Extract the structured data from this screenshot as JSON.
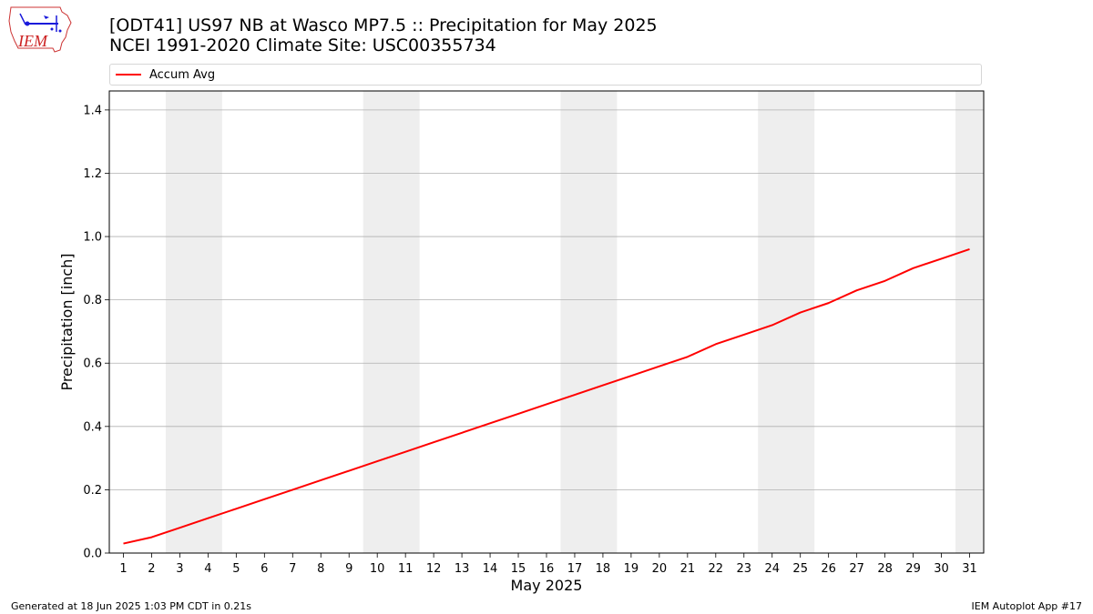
{
  "title_line1": "[ODT41] US97 NB at Wasco MP7.5  :: Precipitation for May 2025",
  "title_line2": "NCEI 1991-2020 Climate Site: USC00355734",
  "logo_text": "IEM",
  "footer_left": "Generated at 18 Jun 2025 1:03 PM CDT in 0.21s",
  "footer_right": "IEM Autoplot App #17",
  "colors": {
    "series": "#ff0000",
    "weekend_band": "#eeeeee",
    "grid": "#b0b0b0"
  },
  "chart_data": {
    "type": "line",
    "xlabel": "May 2025",
    "ylabel": "Precipitation [inch]",
    "x": [
      1,
      2,
      3,
      4,
      5,
      6,
      7,
      8,
      9,
      10,
      11,
      12,
      13,
      14,
      15,
      16,
      17,
      18,
      19,
      20,
      21,
      22,
      23,
      24,
      25,
      26,
      27,
      28,
      29,
      30,
      31
    ],
    "xlim": [
      0.5,
      31.5
    ],
    "ylim": [
      0,
      1.46
    ],
    "yticks": [
      0.0,
      0.2,
      0.4,
      0.6,
      0.8,
      1.0,
      1.2,
      1.4
    ],
    "ytick_labels": [
      "0.0",
      "0.2",
      "0.4",
      "0.6",
      "0.8",
      "1.0",
      "1.2",
      "1.4"
    ],
    "grid": "horizontal",
    "legend": "top",
    "shaded_day_ranges": [
      [
        3,
        4
      ],
      [
        10,
        11
      ],
      [
        17,
        18
      ],
      [
        24,
        25
      ],
      [
        31,
        31
      ]
    ],
    "series": [
      {
        "name": "Accum Avg",
        "color": "#ff0000",
        "values": [
          0.03,
          0.05,
          0.08,
          0.11,
          0.14,
          0.17,
          0.2,
          0.23,
          0.26,
          0.29,
          0.32,
          0.35,
          0.38,
          0.41,
          0.44,
          0.47,
          0.5,
          0.53,
          0.56,
          0.59,
          0.62,
          0.66,
          0.69,
          0.72,
          0.76,
          0.79,
          0.83,
          0.86,
          0.9,
          0.93,
          0.96
        ]
      }
    ]
  }
}
